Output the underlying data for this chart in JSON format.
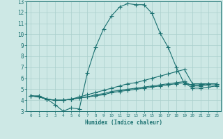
{
  "xlabel": "Humidex (Indice chaleur)",
  "xlim": [
    -0.5,
    23.5
  ],
  "ylim": [
    3,
    13
  ],
  "xticks": [
    0,
    1,
    2,
    3,
    4,
    5,
    6,
    7,
    8,
    9,
    10,
    11,
    12,
    13,
    14,
    15,
    16,
    17,
    18,
    19,
    20,
    21,
    22,
    23
  ],
  "yticks": [
    3,
    4,
    5,
    6,
    7,
    8,
    9,
    10,
    11,
    12,
    13
  ],
  "background_color": "#cde8e5",
  "grid_color": "#aacfcc",
  "line_color": "#1a7070",
  "lines": [
    {
      "x": [
        0,
        1,
        2,
        3,
        4,
        5,
        6,
        7,
        8,
        9,
        10,
        11,
        12,
        13,
        14,
        15,
        16,
        17,
        18,
        19,
        20,
        21,
        22,
        23
      ],
      "y": [
        4.4,
        4.4,
        4.1,
        3.6,
        3.0,
        3.3,
        3.2,
        6.5,
        8.8,
        10.5,
        11.7,
        12.5,
        12.8,
        12.7,
        12.7,
        11.9,
        10.1,
        8.8,
        7.0,
        5.5,
        5.4,
        5.4,
        5.5,
        5.5
      ]
    },
    {
      "x": [
        0,
        1,
        2,
        3,
        4,
        5,
        6,
        7,
        8,
        9,
        10,
        11,
        12,
        13,
        14,
        15,
        16,
        17,
        18,
        19,
        20,
        21,
        22,
        23
      ],
      "y": [
        4.4,
        4.3,
        4.1,
        4.0,
        4.0,
        4.1,
        4.3,
        4.5,
        4.7,
        4.9,
        5.1,
        5.3,
        5.5,
        5.6,
        5.8,
        6.0,
        6.2,
        6.4,
        6.6,
        6.8,
        5.5,
        5.5,
        5.5,
        5.5
      ]
    },
    {
      "x": [
        0,
        1,
        2,
        3,
        4,
        5,
        6,
        7,
        8,
        9,
        10,
        11,
        12,
        13,
        14,
        15,
        16,
        17,
        18,
        19,
        20,
        21,
        22,
        23
      ],
      "y": [
        4.4,
        4.3,
        4.1,
        4.0,
        4.0,
        4.1,
        4.2,
        4.3,
        4.5,
        4.6,
        4.8,
        4.9,
        5.0,
        5.1,
        5.2,
        5.3,
        5.4,
        5.5,
        5.6,
        5.7,
        5.3,
        5.3,
        5.4,
        5.4
      ]
    },
    {
      "x": [
        0,
        1,
        2,
        3,
        4,
        5,
        6,
        7,
        8,
        9,
        10,
        11,
        12,
        13,
        14,
        15,
        16,
        17,
        18,
        19,
        20,
        21,
        22,
        23
      ],
      "y": [
        4.4,
        4.3,
        4.1,
        4.0,
        4.0,
        4.1,
        4.2,
        4.3,
        4.4,
        4.5,
        4.7,
        4.8,
        4.9,
        5.0,
        5.1,
        5.2,
        5.3,
        5.4,
        5.5,
        5.6,
        5.1,
        5.1,
        5.2,
        5.3
      ]
    }
  ]
}
